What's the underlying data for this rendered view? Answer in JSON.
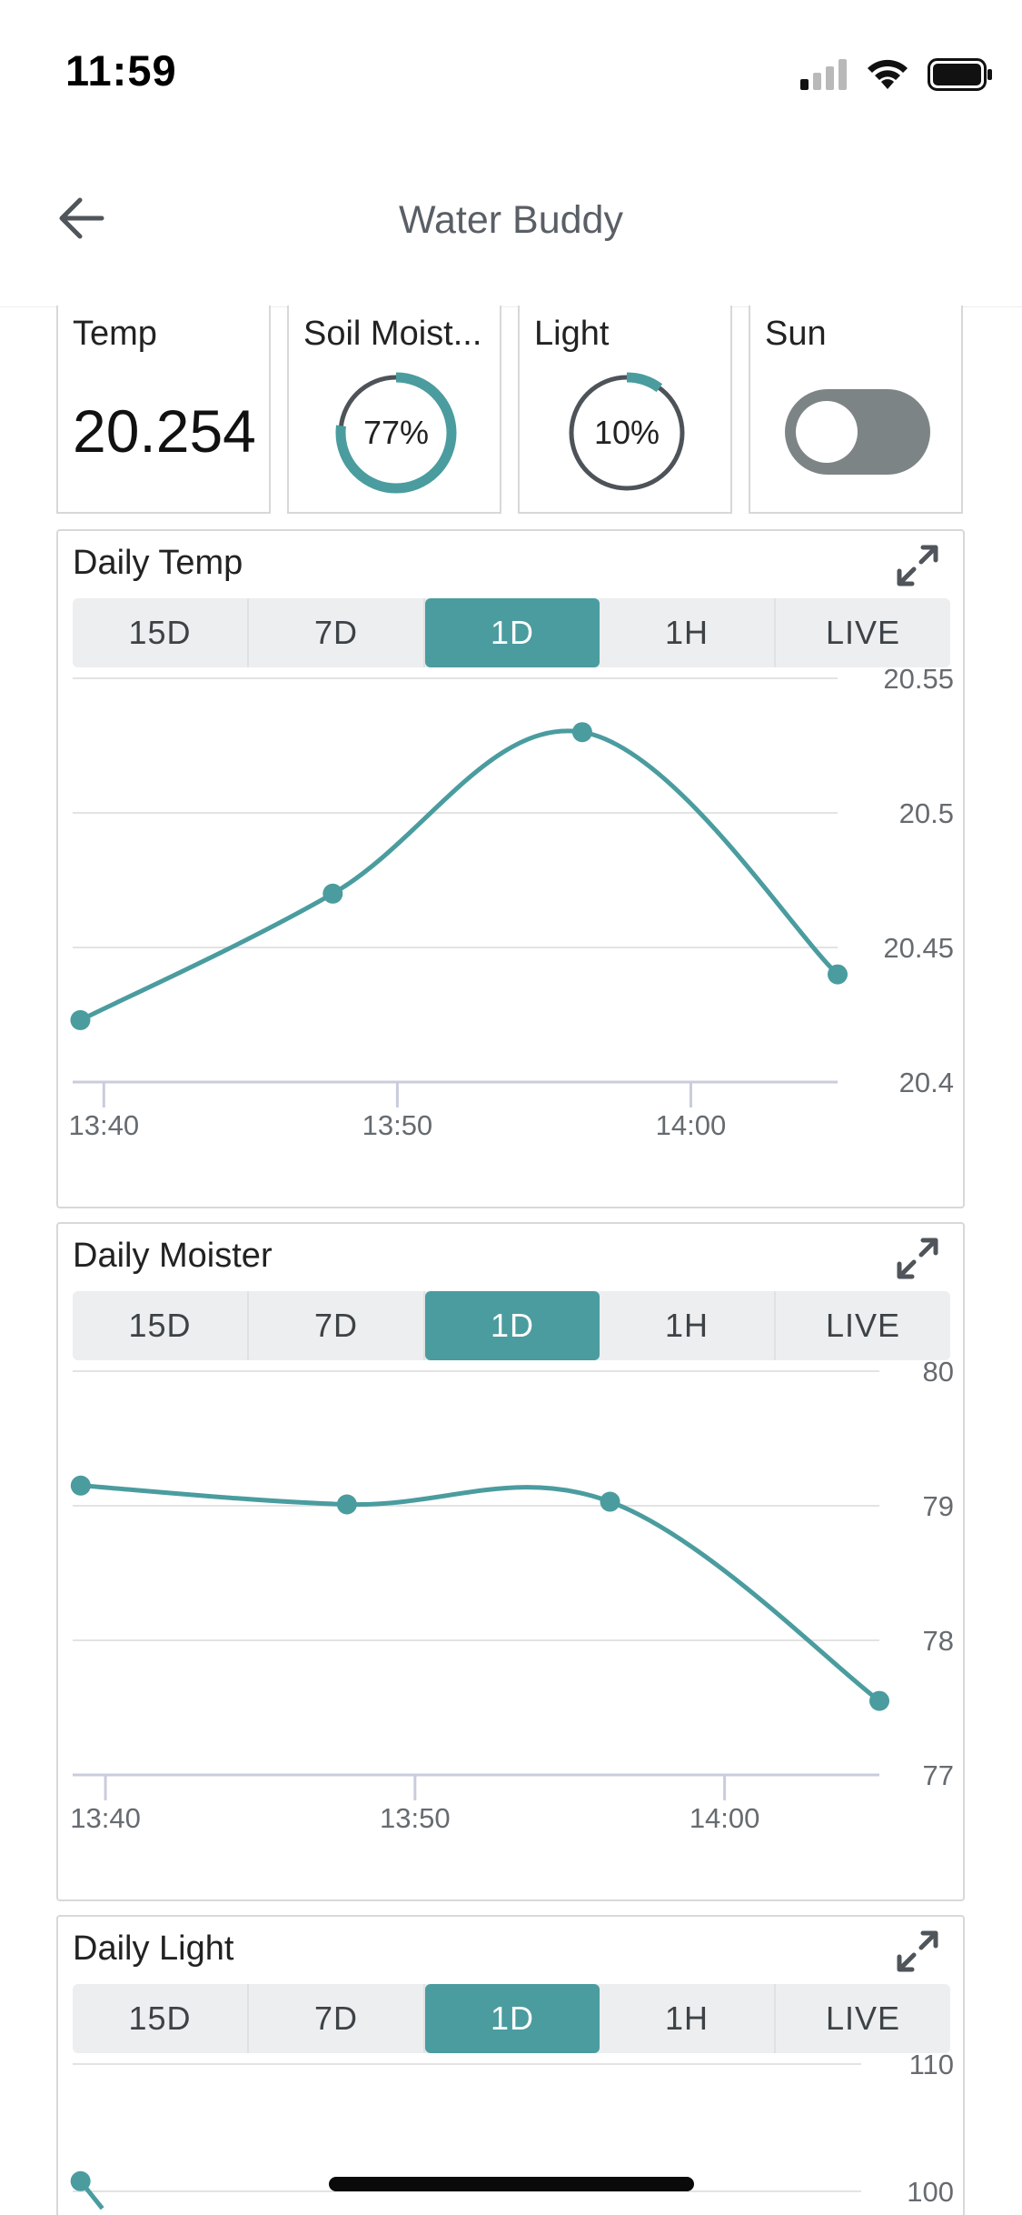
{
  "status_bar": {
    "time": "11:59"
  },
  "header": {
    "title": "Water Buddy"
  },
  "widgets": {
    "temp": {
      "label": "Temp",
      "value": "20.254"
    },
    "soil": {
      "label": "Soil Moist...",
      "value_text": "77%",
      "value": 77
    },
    "light": {
      "label": "Light",
      "value_text": "10%",
      "value": 10
    },
    "sun": {
      "label": "Sun",
      "state": "off"
    }
  },
  "colors": {
    "accent": "#4a9c9f",
    "gauge_track": "#4d5358",
    "toggle_off": "#7d8485"
  },
  "range_tabs": [
    "15D",
    "7D",
    "1D",
    "1H",
    "LIVE"
  ],
  "selected_range": "1D",
  "charts": [
    {
      "title": "Daily Temp",
      "active_tab": "1D"
    },
    {
      "title": "Daily Moister",
      "active_tab": "1D"
    },
    {
      "title": "Daily Light",
      "active_tab": "1D"
    }
  ],
  "chart_data": [
    {
      "type": "line",
      "title": "Daily Temp",
      "x_ticks": [
        "13:40",
        "13:50",
        "14:00"
      ],
      "y_ticks": [
        "20.55",
        "20.5",
        "20.45",
        "20.4"
      ],
      "ylim": [
        20.4,
        20.55
      ],
      "xlim_minutes_after_1340": [
        -1,
        25
      ],
      "points": [
        {
          "t": -0.8,
          "y": 20.423
        },
        {
          "t": 7.8,
          "y": 20.47
        },
        {
          "t": 16.3,
          "y": 20.53
        },
        {
          "t": 25,
          "y": 20.44
        }
      ],
      "grid": true
    },
    {
      "type": "line",
      "title": "Daily Moister",
      "x_ticks": [
        "13:40",
        "13:50",
        "14:00"
      ],
      "y_ticks": [
        "80",
        "79",
        "78",
        "77"
      ],
      "ylim": [
        77,
        80
      ],
      "xlim_minutes_after_1340": [
        -1,
        25
      ],
      "points": [
        {
          "t": -0.8,
          "y": 79.15
        },
        {
          "t": 7.8,
          "y": 79.01
        },
        {
          "t": 16.3,
          "y": 79.03
        },
        {
          "t": 25,
          "y": 77.55
        }
      ],
      "grid": true
    },
    {
      "type": "line",
      "title": "Daily Light",
      "y_ticks": [
        "110",
        "100"
      ],
      "points": [
        {
          "t": -0.8,
          "y": 100.8
        }
      ],
      "grid": true
    }
  ]
}
